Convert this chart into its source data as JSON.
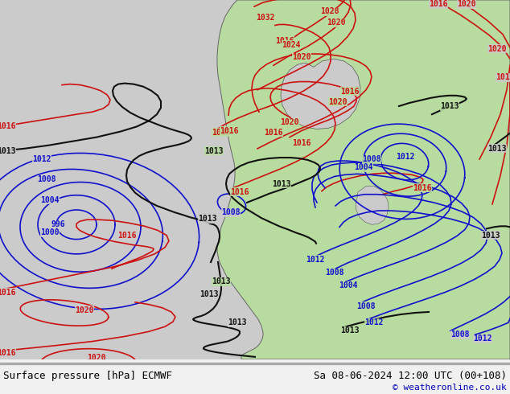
{
  "title_left": "Surface pressure [hPa] ECMWF",
  "title_right": "Sa 08-06-2024 12:00 UTC (00+108)",
  "copyright": "© weatheronline.co.uk",
  "bg_color": "#cbcbcb",
  "land_color": "#b8dca0",
  "water_color": "#cbcbcb",
  "bottom_bar_color": "#f0f0f0",
  "line_color_blue": "#1111cc",
  "line_color_red": "#cc1111",
  "line_color_black": "#111111",
  "figsize": [
    6.34,
    4.9
  ],
  "dpi": 100
}
